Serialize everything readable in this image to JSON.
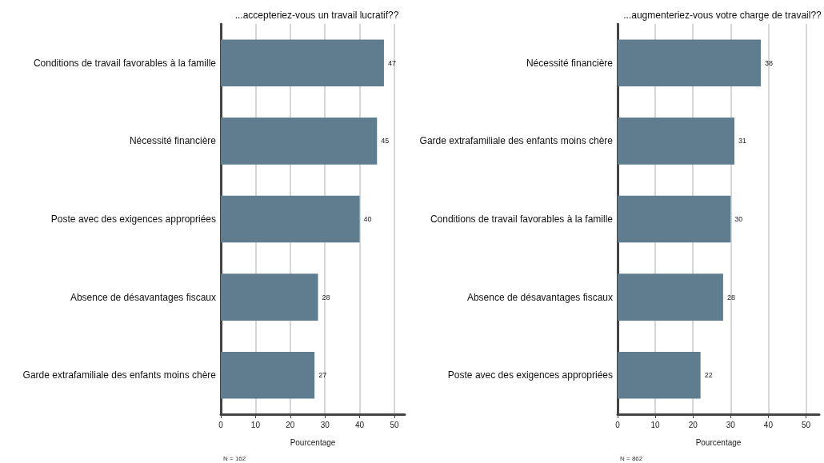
{
  "chart_data": [
    {
      "type": "bar",
      "orientation": "horizontal",
      "title": "...accepteriez-vous un travail lucratif??",
      "xlabel": "Pourcentage",
      "categories": [
        "Conditions de travail favorables à la famille",
        "Nécessité financière",
        "Poste avec des exigences appropriées",
        "Absence de désavantages fiscaux",
        "Garde extrafamiliale des enfants moins chère"
      ],
      "values": [
        47,
        45,
        40,
        28,
        27
      ],
      "color": "#5f7d8e",
      "data_labels": true,
      "xlim": [
        0,
        53
      ],
      "xticks": [
        0,
        10,
        20,
        30,
        40,
        50
      ],
      "grid": "x",
      "annotations": [
        "N = 162"
      ]
    },
    {
      "type": "bar",
      "orientation": "horizontal",
      "title": "...augmenteriez-vous votre charge de travail??",
      "xlabel": "Pourcentage",
      "categories": [
        "Nécessité financière",
        "Garde extrafamiliale des enfants moins chère",
        "Conditions de travail favorables à la famille",
        "Absence de désavantages fiscaux",
        "Poste avec des exigences appropriées"
      ],
      "values": [
        38,
        31,
        30,
        28,
        22
      ],
      "color": "#5f7d8e",
      "data_labels": true,
      "xlim": [
        0,
        53.5
      ],
      "xticks": [
        0,
        10,
        20,
        30,
        40,
        50
      ],
      "grid": "x",
      "annotations": [
        "N = 862"
      ]
    }
  ]
}
